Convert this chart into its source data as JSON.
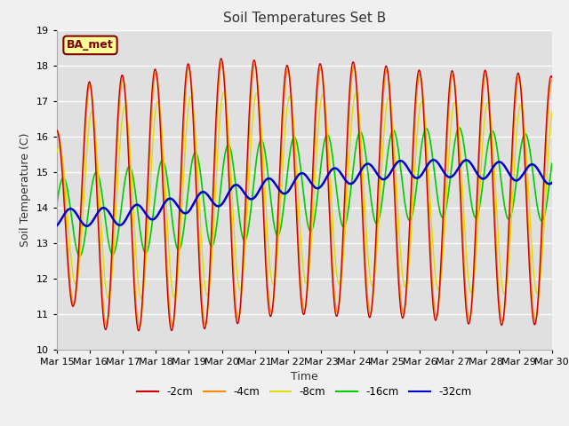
{
  "title": "Soil Temperatures Set B",
  "xlabel": "Time",
  "ylabel": "Soil Temperature (C)",
  "ylim": [
    10.0,
    19.0
  ],
  "yticks": [
    10.0,
    11.0,
    12.0,
    13.0,
    14.0,
    15.0,
    16.0,
    17.0,
    18.0,
    19.0
  ],
  "xtick_labels": [
    "Mar 15",
    "Mar 16",
    "Mar 17",
    "Mar 18",
    "Mar 19",
    "Mar 20",
    "Mar 21",
    "Mar 22",
    "Mar 23",
    "Mar 24",
    "Mar 25",
    "Mar 26",
    "Mar 27",
    "Mar 28",
    "Mar 29",
    "Mar 30"
  ],
  "colors": {
    "-2cm": "#cc0000",
    "-4cm": "#ff8800",
    "-8cm": "#dddd00",
    "-16cm": "#00cc00",
    "-32cm": "#0000cc"
  },
  "legend_label": "BA_met",
  "legend_text_color": "#800000",
  "legend_bg": "#ffff99",
  "legend_border": "#800000",
  "bg_color": "#e0e0e0",
  "fig_bg": "#f0f0f0",
  "grid_color": "#ffffff",
  "n_points": 720
}
